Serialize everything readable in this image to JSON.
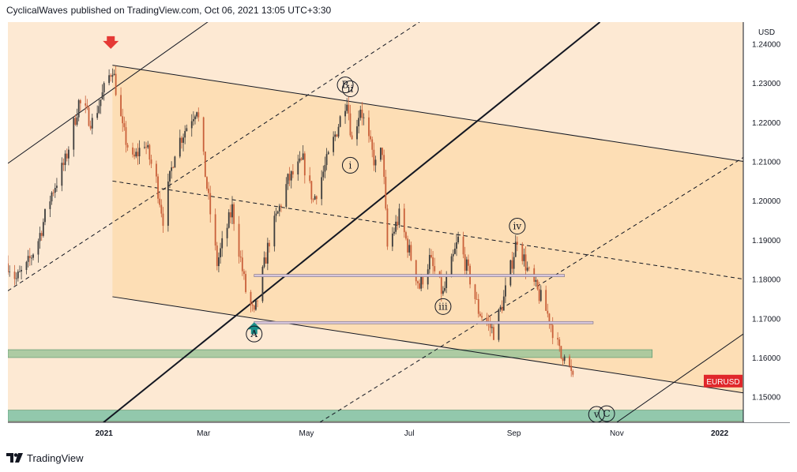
{
  "header": {
    "author": "CyclicalWaves",
    "text": "published on TradingView.com, Oct 06, 2021 13:05 UTC+3:30"
  },
  "footer": {
    "brand": "TradingView"
  },
  "colors": {
    "candle_up": "#3d3d3d",
    "candle_down": "#c9603a",
    "bg_light": "#fde9d3",
    "channel_fill": "#fcd9ab",
    "zone_green": "#9fc59a",
    "zone_teal": "#7fc2a5",
    "symbol_badge": "#e0272b",
    "arrow_down": "#e53935",
    "arrow_up": "#1b8f8a"
  },
  "chart_data": {
    "type": "candlestick",
    "symbol": "EURUSD",
    "currency": "USD",
    "ylim": [
      1.1435,
      1.2455
    ],
    "y_ticks": [
      "1.24000",
      "1.23000",
      "1.22000",
      "1.21000",
      "1.20000",
      "1.19000",
      "1.18000",
      "1.17000",
      "1.16000",
      "1.15000"
    ],
    "y_tick_values": [
      1.24,
      1.23,
      1.22,
      1.21,
      1.2,
      1.19,
      1.18,
      1.17,
      1.16,
      1.15
    ],
    "x_ticks": [
      {
        "label": "2021",
        "bold": true,
        "date": "2021-01-01"
      },
      {
        "label": "Mar",
        "bold": false,
        "date": "2021-03-01"
      },
      {
        "label": "May",
        "bold": false,
        "date": "2021-05-01"
      },
      {
        "label": "Jul",
        "bold": false,
        "date": "2021-07-01"
      },
      {
        "label": "Sep",
        "bold": false,
        "date": "2021-09-01"
      },
      {
        "label": "Nov",
        "bold": false,
        "date": "2021-11-01"
      },
      {
        "label": "2022",
        "bold": true,
        "date": "2022-01-01"
      }
    ],
    "xlim": [
      "2020-11-05",
      "2022-01-15"
    ],
    "price_path": [
      [
        "2020-11-05",
        1.184
      ],
      [
        "2020-11-10",
        1.18
      ],
      [
        "2020-11-16",
        1.183
      ],
      [
        "2020-11-23",
        1.19
      ],
      [
        "2020-12-01",
        1.202
      ],
      [
        "2020-12-09",
        1.21
      ],
      [
        "2020-12-17",
        1.225
      ],
      [
        "2020-12-25",
        1.22
      ],
      [
        "2021-01-06",
        1.234
      ],
      [
        "2021-01-12",
        1.218
      ],
      [
        "2021-01-18",
        1.21
      ],
      [
        "2021-01-25",
        1.215
      ],
      [
        "2021-02-01",
        1.205
      ],
      [
        "2021-02-05",
        1.1955
      ],
      [
        "2021-02-12",
        1.213
      ],
      [
        "2021-02-25",
        1.224
      ],
      [
        "2021-03-04",
        1.2
      ],
      [
        "2021-03-09",
        1.184
      ],
      [
        "2021-03-18",
        1.198
      ],
      [
        "2021-03-26",
        1.177
      ],
      [
        "2021-03-31",
        1.1705
      ],
      [
        "2021-04-09",
        1.19
      ],
      [
        "2021-04-20",
        1.205
      ],
      [
        "2021-04-29",
        1.21
      ],
      [
        "2021-05-05",
        1.2
      ],
      [
        "2021-05-14",
        1.211
      ],
      [
        "2021-05-25",
        1.2265
      ],
      [
        "2021-05-28",
        1.215
      ],
      [
        "2021-06-02",
        1.224
      ],
      [
        "2021-06-07",
        1.215
      ],
      [
        "2021-06-11",
        1.209
      ],
      [
        "2021-06-15",
        1.213
      ],
      [
        "2021-06-18",
        1.188
      ],
      [
        "2021-06-25",
        1.196
      ],
      [
        "2021-07-07",
        1.178
      ],
      [
        "2021-07-13",
        1.185
      ],
      [
        "2021-07-21",
        1.176
      ],
      [
        "2021-07-30",
        1.19
      ],
      [
        "2021-08-06",
        1.18
      ],
      [
        "2021-08-11",
        1.172
      ],
      [
        "2021-08-20",
        1.1665
      ],
      [
        "2021-08-26",
        1.175
      ],
      [
        "2021-09-03",
        1.1905
      ],
      [
        "2021-09-10",
        1.181
      ],
      [
        "2021-09-17",
        1.175
      ],
      [
        "2021-09-22",
        1.17
      ],
      [
        "2021-09-29",
        1.16
      ],
      [
        "2021-10-01",
        1.162
      ],
      [
        "2021-10-06",
        1.154
      ]
    ],
    "trend_lines": [
      {
        "name": "upper-rail",
        "points": [
          [
            "2021-01-06",
            1.2345
          ],
          [
            "2022-01-15",
            1.21
          ]
        ],
        "style": "solid",
        "width": 1
      },
      {
        "name": "lower-rail",
        "points": [
          [
            "2021-01-06",
            1.1755
          ],
          [
            "2022-01-15",
            1.151
          ]
        ],
        "style": "solid",
        "width": 1
      },
      {
        "name": "median-line",
        "points": [
          [
            "2021-01-06",
            1.205
          ],
          [
            "2022-01-15",
            1.18
          ]
        ],
        "style": "dashed",
        "width": 1
      },
      {
        "name": "top-left-rail",
        "points": [
          [
            "2020-11-05",
            1.2095
          ],
          [
            "2021-03-05",
            1.246
          ]
        ],
        "style": "solid",
        "width": 1
      },
      {
        "name": "bold-diagonal",
        "points": [
          [
            "2020-12-26",
            1.1415
          ],
          [
            "2021-10-22",
            1.2455
          ]
        ],
        "style": "solid",
        "width": 2
      },
      {
        "name": "dash-diagonal-upper",
        "points": [
          [
            "2020-11-05",
            1.177
          ],
          [
            "2021-07-07",
            1.2455
          ]
        ],
        "style": "dashed",
        "width": 1
      },
      {
        "name": "dash-diagonal-lower",
        "points": [
          [
            "2021-05-09",
            1.1435
          ],
          [
            "2022-01-15",
            1.211
          ]
        ],
        "style": "dashed",
        "width": 1
      },
      {
        "name": "lower-right-diagonal",
        "points": [
          [
            "2021-11-01",
            1.1435
          ],
          [
            "2022-01-15",
            1.166
          ]
        ],
        "style": "solid",
        "width": 1
      }
    ],
    "horizontal_levels": [
      {
        "name": "resistance-band-1",
        "from": "2021-03-31",
        "to": "2021-10-01",
        "price": 1.1809
      },
      {
        "name": "resistance-band-2",
        "from": "2021-03-31",
        "to": "2021-10-18",
        "price": 1.1689
      }
    ],
    "zones": [
      {
        "name": "green-zone",
        "from": "2020-11-05",
        "to": "2021-11-22",
        "top": 1.162,
        "bottom": 1.16
      },
      {
        "name": "teal-zone",
        "from": "2020-11-05",
        "to": "2022-01-15",
        "top": 1.1466,
        "bottom": 1.1438
      }
    ],
    "wave_labels": [
      {
        "label": "B",
        "date": "2021-05-24",
        "price": 1.2295
      },
      {
        "label": "ii",
        "date": "2021-05-27",
        "price": 1.2285
      },
      {
        "label": "i",
        "date": "2021-05-27",
        "price": 1.209
      },
      {
        "label": "A",
        "date": "2021-03-31",
        "price": 1.166
      },
      {
        "label": "iii",
        "date": "2021-07-21",
        "price": 1.173
      },
      {
        "label": "iv",
        "date": "2021-09-03",
        "price": 1.1935
      },
      {
        "label": "v",
        "date": "2021-10-20",
        "price": 1.1455
      },
      {
        "label": "C",
        "date": "2021-10-26",
        "price": 1.1457
      }
    ],
    "markers": [
      {
        "name": "top-arrow",
        "type": "arrow-down",
        "date": "2021-01-05",
        "price": 1.2395
      },
      {
        "name": "bottom-arrow",
        "type": "arrow-up",
        "date": "2021-03-31",
        "price": 1.169
      }
    ],
    "last_label": "EURUSD",
    "last_price": 1.154
  }
}
